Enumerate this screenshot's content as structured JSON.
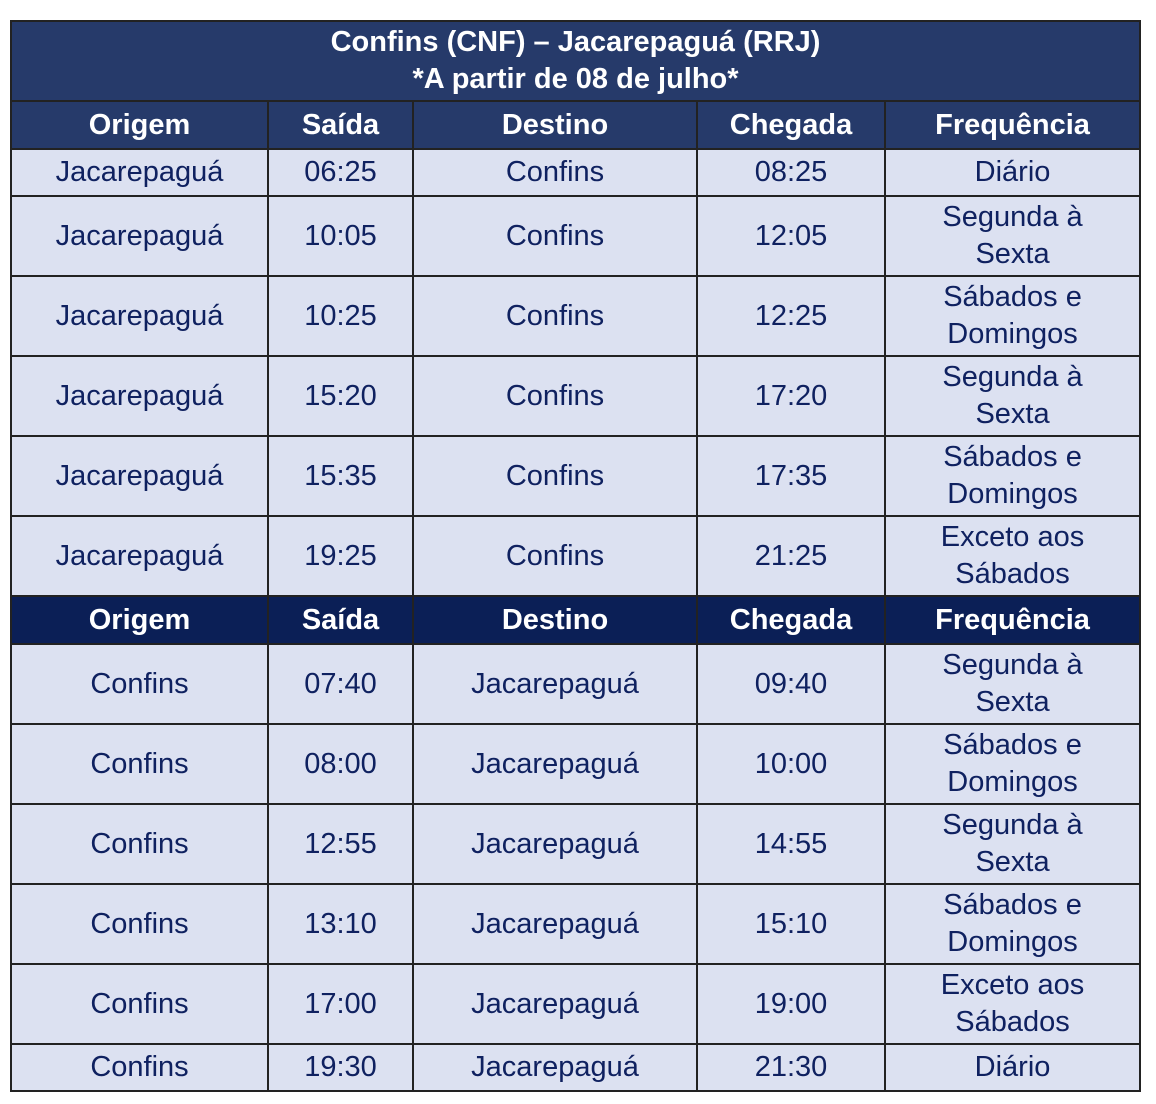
{
  "table": {
    "title": [
      "Confins (CNF) – Jacarepaguá (RRJ)",
      "*A partir de 08 de julho*"
    ],
    "sections": [
      {
        "header": [
          "Origem",
          "Saída",
          "Destino",
          "Chegada",
          "Frequência"
        ],
        "rows": [
          [
            "Jacarepaguá",
            "06:25",
            "Confins",
            "08:25",
            "Diário"
          ],
          [
            "Jacarepaguá",
            "10:05",
            "Confins",
            "12:05",
            "Segunda à Sexta"
          ],
          [
            "Jacarepaguá",
            "10:25",
            "Confins",
            "12:25",
            "Sábados e Domingos"
          ],
          [
            "Jacarepaguá",
            "15:20",
            "Confins",
            "17:20",
            "Segunda à Sexta"
          ],
          [
            "Jacarepaguá",
            "15:35",
            "Confins",
            "17:35",
            "Sábados e Domingos"
          ],
          [
            "Jacarepaguá",
            "19:25",
            "Confins",
            "21:25",
            "Exceto aos Sábados"
          ]
        ]
      },
      {
        "header": [
          "Origem",
          "Saída",
          "Destino",
          "Chegada",
          "Frequência"
        ],
        "rows": [
          [
            "Confins",
            "07:40",
            "Jacarepaguá",
            "09:40",
            "Segunda à Sexta"
          ],
          [
            "Confins",
            "08:00",
            "Jacarepaguá",
            "10:00",
            "Sábados e Domingos"
          ],
          [
            "Confins",
            "12:55",
            "Jacarepaguá",
            "14:55",
            "Segunda à Sexta"
          ],
          [
            "Confins",
            "13:10",
            "Jacarepaguá",
            "15:10",
            "Sábados e Domingos"
          ],
          [
            "Confins",
            "17:00",
            "Jacarepaguá",
            "19:00",
            "Exceto aos Sábados"
          ],
          [
            "Confins",
            "19:30",
            "Jacarepaguá",
            "21:30",
            "Diário"
          ]
        ]
      }
    ]
  }
}
